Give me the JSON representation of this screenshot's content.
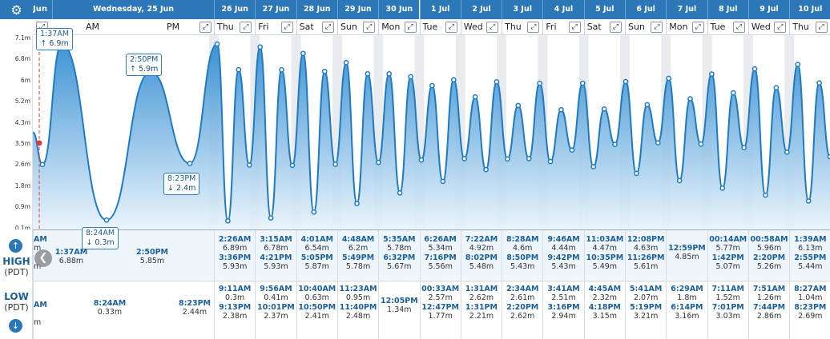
{
  "header": {
    "corner_label": "Jun",
    "today_label": "Wednesday, 25 Jun",
    "am_label": "AM",
    "pm_label": "PM"
  },
  "days": [
    {
      "date": "26 Jun",
      "dow": "Thu"
    },
    {
      "date": "27 Jun",
      "dow": "Fri"
    },
    {
      "date": "28 Jun",
      "dow": "Sat"
    },
    {
      "date": "29 Jun",
      "dow": "Sun"
    },
    {
      "date": "30 Jun",
      "dow": "Mon"
    },
    {
      "date": "1 Jul",
      "dow": "Tue"
    },
    {
      "date": "2 Jul",
      "dow": "Wed"
    },
    {
      "date": "3 Jul",
      "dow": "Thu"
    },
    {
      "date": "4 Jul",
      "dow": "Fri"
    },
    {
      "date": "5 Jul",
      "dow": "Sat"
    },
    {
      "date": "6 Jul",
      "dow": "Sun"
    },
    {
      "date": "7 Jul",
      "dow": "Mon"
    },
    {
      "date": "8 Jul",
      "dow": "Tue"
    },
    {
      "date": "9 Jul",
      "dow": "Wed"
    },
    {
      "date": "10 Jul",
      "dow": "Thu"
    }
  ],
  "labels": {
    "high": "HIGH",
    "low": "LOW",
    "tz": "(PDT)",
    "partial_col": [
      "AM",
      "m",
      "m",
      "AM",
      "m"
    ]
  },
  "today_tides": {
    "high": [
      {
        "time": "1:37AM",
        "height": "6.88m"
      },
      {
        "time": "2:50PM",
        "height": "5.85m"
      }
    ],
    "low": [
      {
        "time": "8:24AM",
        "height": "0.33m"
      },
      {
        "time": "8:23PM",
        "height": "2.44m"
      }
    ]
  },
  "callouts": [
    {
      "time": "1:37AM",
      "height": "↑ 6.9m"
    },
    {
      "time": "8:24AM",
      "height": "↓ 0.3m"
    },
    {
      "time": "2:50PM",
      "height": "↑ 5.9m"
    },
    {
      "time": "8:23PM",
      "height": "↓ 2.4m"
    }
  ],
  "tides": [
    {
      "high": [
        [
          "2:26AM",
          "6.89m"
        ],
        [
          "3:36PM",
          "5.93m"
        ]
      ],
      "low": [
        [
          "9:11AM",
          "0.3m"
        ],
        [
          "9:13PM",
          "2.38m"
        ]
      ]
    },
    {
      "high": [
        [
          "3:15AM",
          "6.78m"
        ],
        [
          "4:21PM",
          "5.93m"
        ]
      ],
      "low": [
        [
          "9:56AM",
          "0.41m"
        ],
        [
          "10:01PM",
          "2.37m"
        ]
      ]
    },
    {
      "high": [
        [
          "4:01AM",
          "6.54m"
        ],
        [
          "5:05PM",
          "5.87m"
        ]
      ],
      "low": [
        [
          "10:40AM",
          "0.63m"
        ],
        [
          "10:50PM",
          "2.41m"
        ]
      ]
    },
    {
      "high": [
        [
          "4:48AM",
          "6.2m"
        ],
        [
          "5:49PM",
          "5.78m"
        ]
      ],
      "low": [
        [
          "11:23AM",
          "0.95m"
        ],
        [
          "11:40PM",
          "2.48m"
        ]
      ]
    },
    {
      "high": [
        [
          "5:35AM",
          "5.78m"
        ],
        [
          "6:32PM",
          "5.67m"
        ]
      ],
      "low": [
        [
          "12:05PM",
          "1.34m"
        ]
      ]
    },
    {
      "high": [
        [
          "6:26AM",
          "5.34m"
        ],
        [
          "7:16PM",
          "5.56m"
        ]
      ],
      "low": [
        [
          "00:33AM",
          "2.57m"
        ],
        [
          "12:47PM",
          "1.77m"
        ]
      ]
    },
    {
      "high": [
        [
          "7:22AM",
          "4.92m"
        ],
        [
          "8:02PM",
          "5.48m"
        ]
      ],
      "low": [
        [
          "1:31AM",
          "2.62m"
        ],
        [
          "1:31PM",
          "2.21m"
        ]
      ]
    },
    {
      "high": [
        [
          "8:28AM",
          "4.6m"
        ],
        [
          "8:50PM",
          "5.43m"
        ]
      ],
      "low": [
        [
          "2:34AM",
          "2.61m"
        ],
        [
          "2:20PM",
          "2.62m"
        ]
      ]
    },
    {
      "high": [
        [
          "9:46AM",
          "4.44m"
        ],
        [
          "9:42PM",
          "5.43m"
        ]
      ],
      "low": [
        [
          "3:41AM",
          "2.51m"
        ],
        [
          "3:16PM",
          "2.94m"
        ]
      ]
    },
    {
      "high": [
        [
          "11:03AM",
          "4.47m"
        ],
        [
          "10:35PM",
          "5.49m"
        ]
      ],
      "low": [
        [
          "4:45AM",
          "2.32m"
        ],
        [
          "4:18PM",
          "3.15m"
        ]
      ]
    },
    {
      "high": [
        [
          "12:08PM",
          "4.63m"
        ],
        [
          "11:26PM",
          "5.61m"
        ]
      ],
      "low": [
        [
          "5:41AM",
          "2.07m"
        ],
        [
          "5:19PM",
          "3.21m"
        ]
      ]
    },
    {
      "high": [
        [
          "12:59PM",
          "4.85m"
        ]
      ],
      "low": [
        [
          "6:29AM",
          "1.8m"
        ],
        [
          "6:14PM",
          "3.16m"
        ]
      ]
    },
    {
      "high": [
        [
          "00:14AM",
          "5.77m"
        ],
        [
          "1:42PM",
          "5.07m"
        ]
      ],
      "low": [
        [
          "7:11AM",
          "1.52m"
        ],
        [
          "7:01PM",
          "3.03m"
        ]
      ]
    },
    {
      "high": [
        [
          "00:58AM",
          "5.96m"
        ],
        [
          "2:20PM",
          "5.26m"
        ]
      ],
      "low": [
        [
          "7:51AM",
          "1.26m"
        ],
        [
          "7:44PM",
          "2.86m"
        ]
      ]
    },
    {
      "high": [
        [
          "1:39AM",
          "6.13m"
        ],
        [
          "2:55PM",
          "5.44m"
        ]
      ],
      "low": [
        [
          "8:27AM",
          "1.04m"
        ],
        [
          "8:23PM",
          "2.69m"
        ]
      ]
    }
  ],
  "chart_data": {
    "type": "area",
    "yticks": [
      "7.1m",
      "6.8m",
      "6m",
      "5.2m",
      "4.3m",
      "3.5m",
      "2.6m",
      "1.8m",
      "0.9m",
      "0.1m"
    ],
    "ylim": [
      0.1,
      7.1
    ],
    "current_height_m": 3.2,
    "series_values_m": [
      2.4,
      6.88,
      0.33,
      5.85,
      2.44,
      6.89,
      0.3,
      5.93,
      2.38,
      6.78,
      0.41,
      5.93,
      2.37,
      6.54,
      0.63,
      5.87,
      2.41,
      6.2,
      0.95,
      5.78,
      2.48,
      5.78,
      1.34,
      5.67,
      2.57,
      5.34,
      1.77,
      5.56,
      2.62,
      4.92,
      2.21,
      5.48,
      2.61,
      4.6,
      2.62,
      5.43,
      2.51,
      4.44,
      2.94,
      5.43,
      2.32,
      4.47,
      3.15,
      5.49,
      2.07,
      4.63,
      3.21,
      5.61,
      1.8,
      4.85,
      3.16,
      5.77,
      1.52,
      5.07,
      3.03,
      5.96,
      1.26,
      5.26,
      2.86,
      6.13,
      1.04,
      5.44,
      2.69
    ]
  },
  "colors": {
    "header": "#2c77b8",
    "line": "#1f7cc4",
    "fill_top": "#2a88d0",
    "fill_bottom": "#e8f3fb"
  }
}
